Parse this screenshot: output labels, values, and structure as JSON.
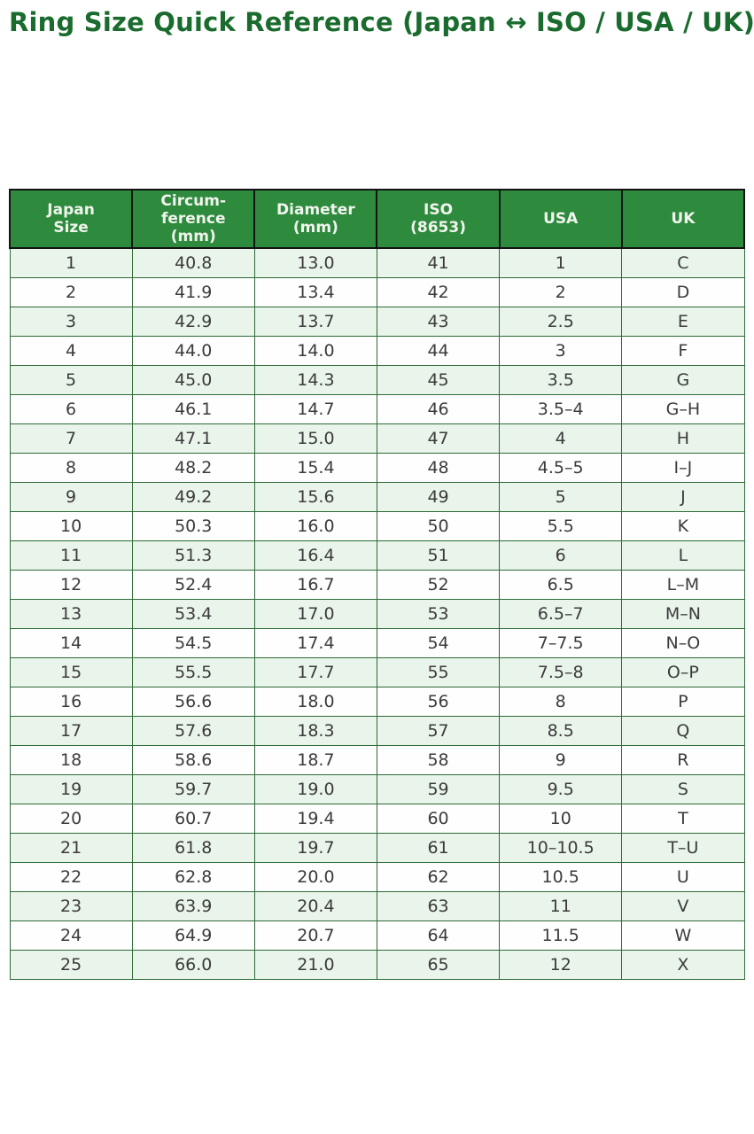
{
  "page": {
    "title": "Ring Size Quick Reference (Japan ↔ ISO / USA / UK)"
  },
  "colors": {
    "title_text": "#1a6b2e",
    "header_bg": "#2e8b3e",
    "header_text": "#f2f4ee",
    "header_border": "#131313",
    "body_border": "#2e6b38",
    "row_alt_bg": "#e9f4ea",
    "row_bg": "#fdfefd",
    "body_text": "#3b3b3b"
  },
  "chart_data": {
    "type": "table",
    "title": "Ring Size Quick Reference (Japan ↔ ISO / USA / UK)",
    "columns": [
      {
        "id": "japan-size",
        "label": "Japan Size",
        "lines": [
          "Japan",
          "Size"
        ]
      },
      {
        "id": "circumference",
        "label": "Circum-ference (mm)",
        "lines": [
          "Circum-",
          "ference",
          "(mm)"
        ]
      },
      {
        "id": "diameter",
        "label": "Diameter (mm)",
        "lines": [
          "Diameter",
          "(mm)"
        ]
      },
      {
        "id": "iso",
        "label": "ISO (8653)",
        "lines": [
          "ISO",
          "(8653)"
        ]
      },
      {
        "id": "usa",
        "label": "USA",
        "lines": [
          "USA"
        ]
      },
      {
        "id": "uk",
        "label": "UK",
        "lines": [
          "UK"
        ]
      }
    ],
    "rows": [
      [
        "1",
        "40.8",
        "13.0",
        "41",
        "1",
        "C"
      ],
      [
        "2",
        "41.9",
        "13.4",
        "42",
        "2",
        "D"
      ],
      [
        "3",
        "42.9",
        "13.7",
        "43",
        "2.5",
        "E"
      ],
      [
        "4",
        "44.0",
        "14.0",
        "44",
        "3",
        "F"
      ],
      [
        "5",
        "45.0",
        "14.3",
        "45",
        "3.5",
        "G"
      ],
      [
        "6",
        "46.1",
        "14.7",
        "46",
        "3.5–4",
        "G–H"
      ],
      [
        "7",
        "47.1",
        "15.0",
        "47",
        "4",
        "H"
      ],
      [
        "8",
        "48.2",
        "15.4",
        "48",
        "4.5–5",
        "I–J"
      ],
      [
        "9",
        "49.2",
        "15.6",
        "49",
        "5",
        "J"
      ],
      [
        "10",
        "50.3",
        "16.0",
        "50",
        "5.5",
        "K"
      ],
      [
        "11",
        "51.3",
        "16.4",
        "51",
        "6",
        "L"
      ],
      [
        "12",
        "52.4",
        "16.7",
        "52",
        "6.5",
        "L–M"
      ],
      [
        "13",
        "53.4",
        "17.0",
        "53",
        "6.5–7",
        "M–N"
      ],
      [
        "14",
        "54.5",
        "17.4",
        "54",
        "7–7.5",
        "N–O"
      ],
      [
        "15",
        "55.5",
        "17.7",
        "55",
        "7.5–8",
        "O–P"
      ],
      [
        "16",
        "56.6",
        "18.0",
        "56",
        "8",
        "P"
      ],
      [
        "17",
        "57.6",
        "18.3",
        "57",
        "8.5",
        "Q"
      ],
      [
        "18",
        "58.6",
        "18.7",
        "58",
        "9",
        "R"
      ],
      [
        "19",
        "59.7",
        "19.0",
        "59",
        "9.5",
        "S"
      ],
      [
        "20",
        "60.7",
        "19.4",
        "60",
        "10",
        "T"
      ],
      [
        "21",
        "61.8",
        "19.7",
        "61",
        "10–10.5",
        "T–U"
      ],
      [
        "22",
        "62.8",
        "20.0",
        "62",
        "10.5",
        "U"
      ],
      [
        "23",
        "63.9",
        "20.4",
        "63",
        "11",
        "V"
      ],
      [
        "24",
        "64.9",
        "20.7",
        "64",
        "11.5",
        "W"
      ],
      [
        "25",
        "66.0",
        "21.0",
        "65",
        "12",
        "X"
      ]
    ]
  }
}
